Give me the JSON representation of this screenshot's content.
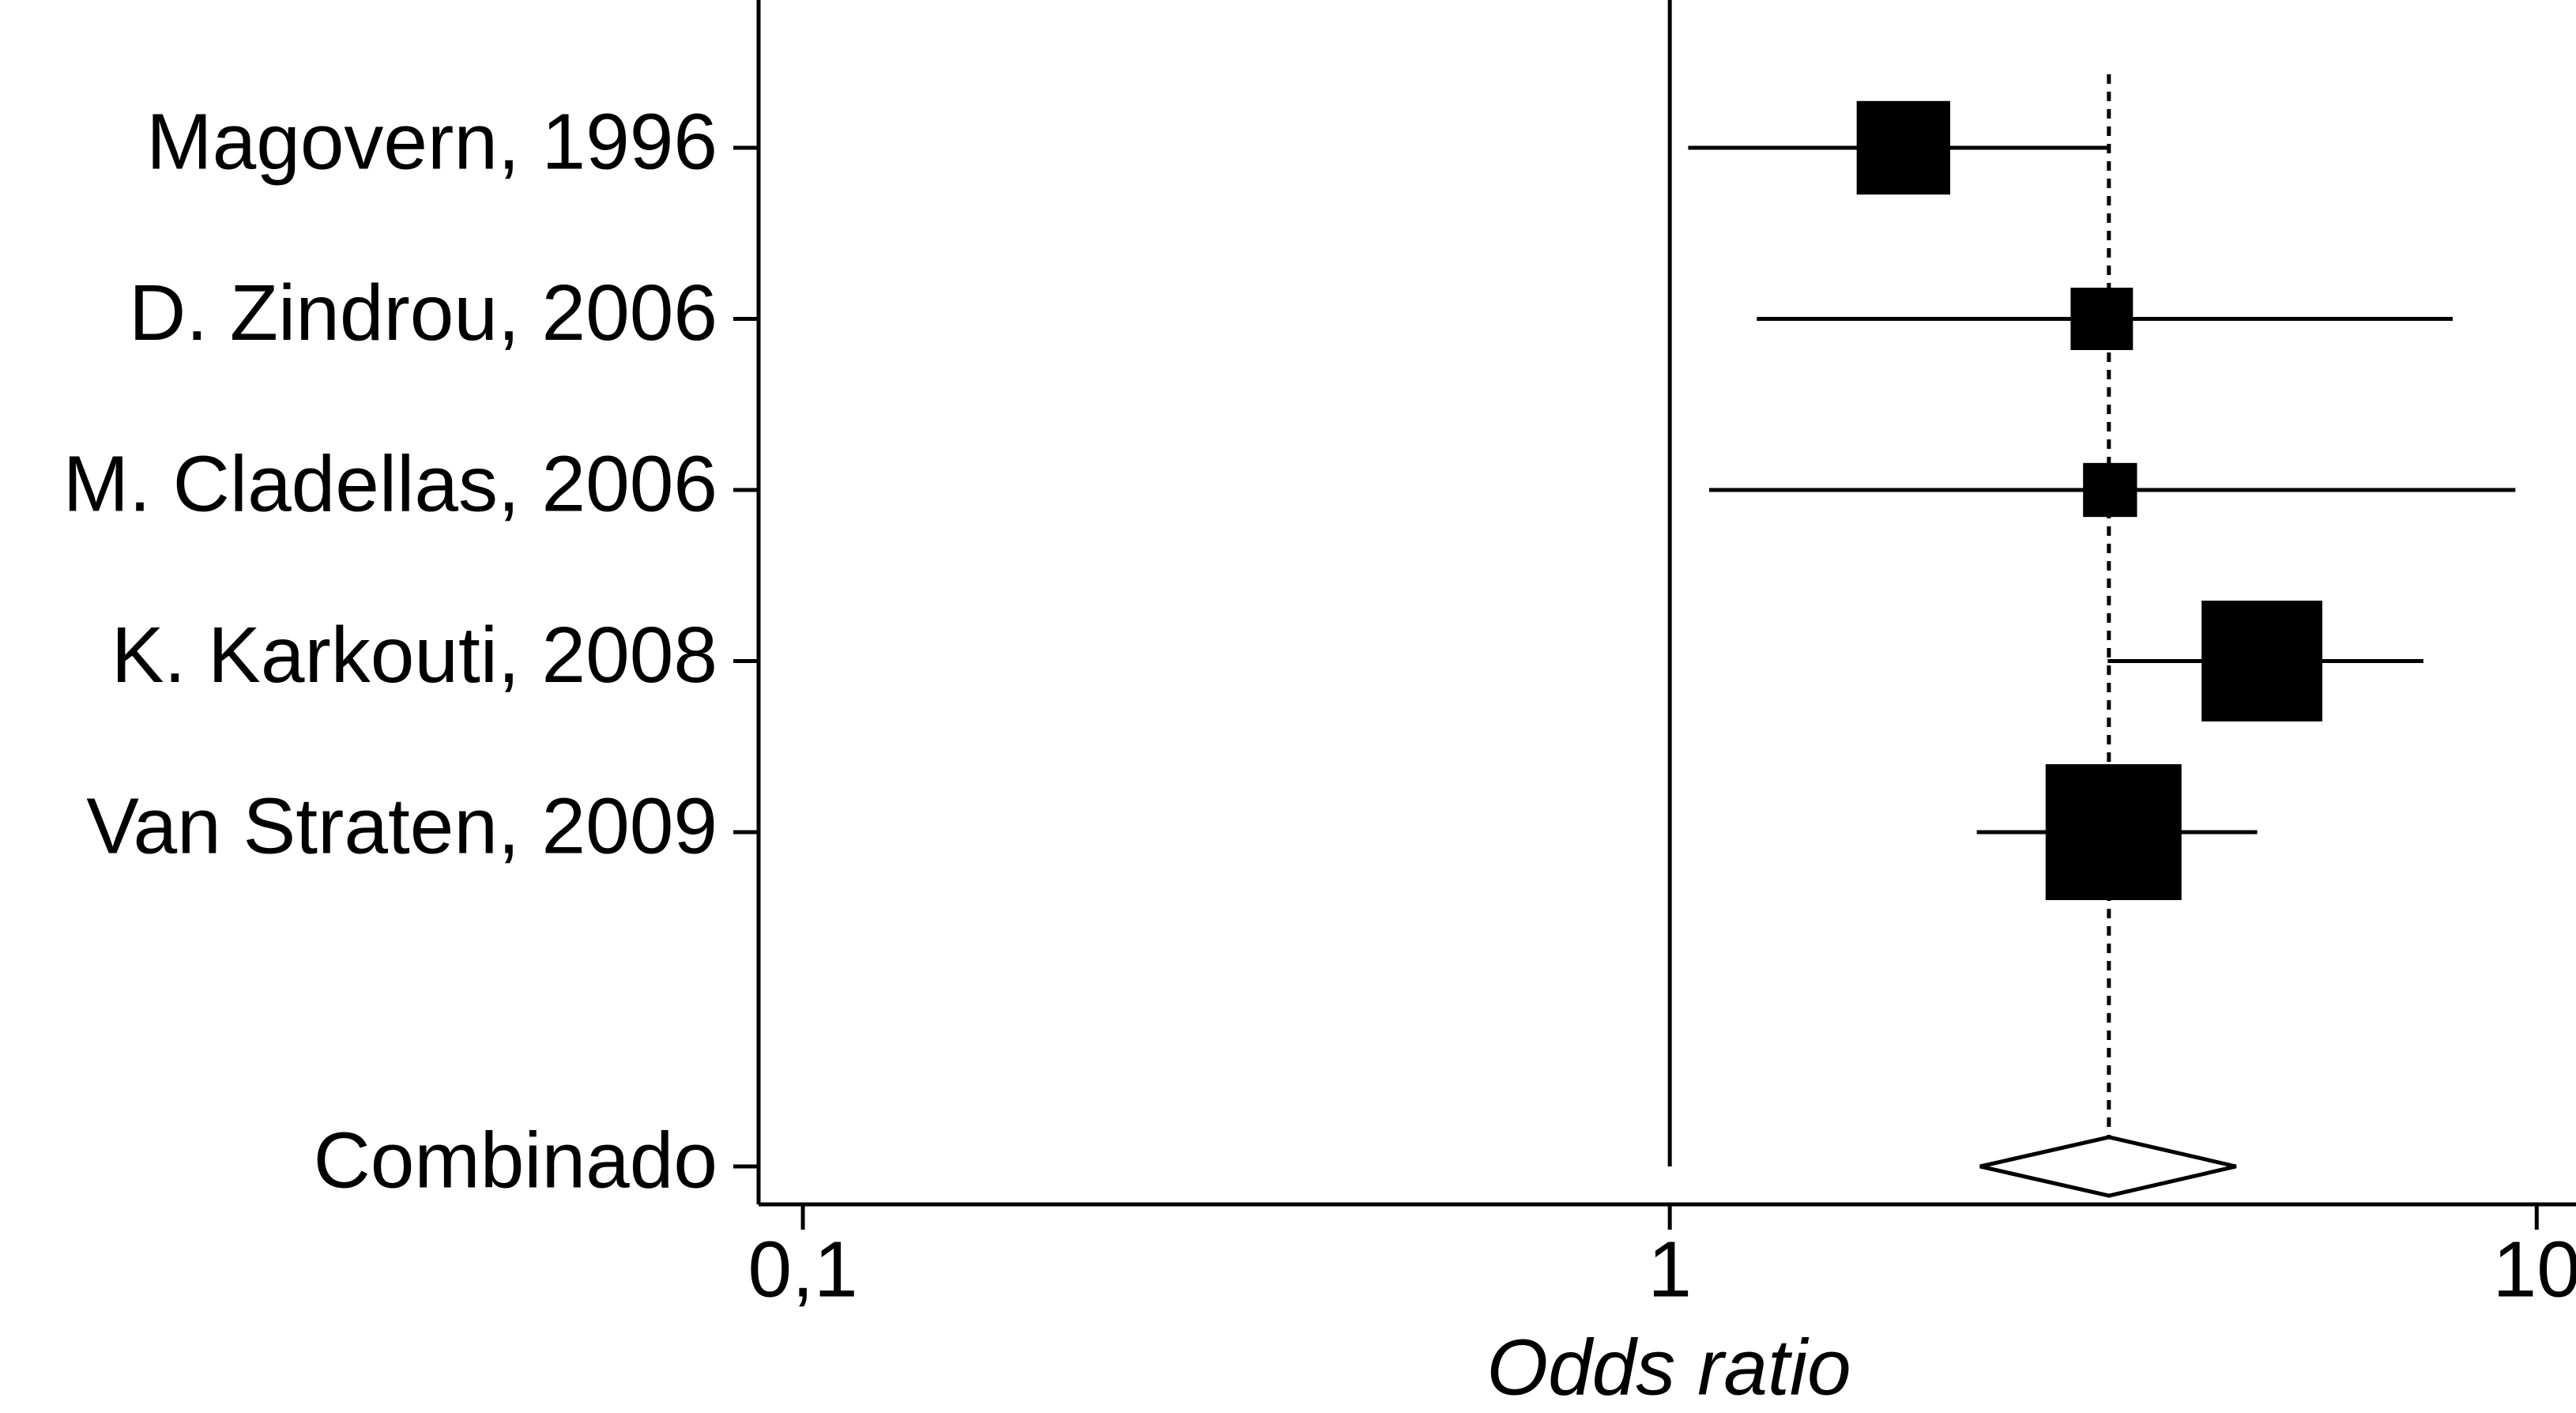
{
  "chart_data": {
    "type": "forest",
    "x_label": "Odds ratio",
    "categories": [
      "Magovern, 1996",
      "D. Zindrou, 2006",
      "M. Cladellas, 2006",
      "K. Karkouti, 2008",
      "Van Straten, 2009"
    ],
    "values": [
      1.86,
      3.15,
      3.22,
      4.82,
      3.25
    ],
    "lower": [
      1.05,
      1.26,
      1.11,
      3.2,
      2.26
    ],
    "upper": [
      3.22,
      8.0,
      9.45,
      7.4,
      4.76
    ],
    "weights": [
      18,
      8,
      6,
      30,
      38
    ],
    "pooled": {
      "name": "Combinado",
      "value": 3.21,
      "lower": 2.28,
      "upper": 4.5
    },
    "reference_line": 1,
    "log_x": true,
    "xlim": [
      0.0889,
      11.1
    ],
    "xticks": [
      {
        "value": 0.1,
        "label": "0,1"
      },
      1,
      10
    ],
    "color": "#000000"
  }
}
